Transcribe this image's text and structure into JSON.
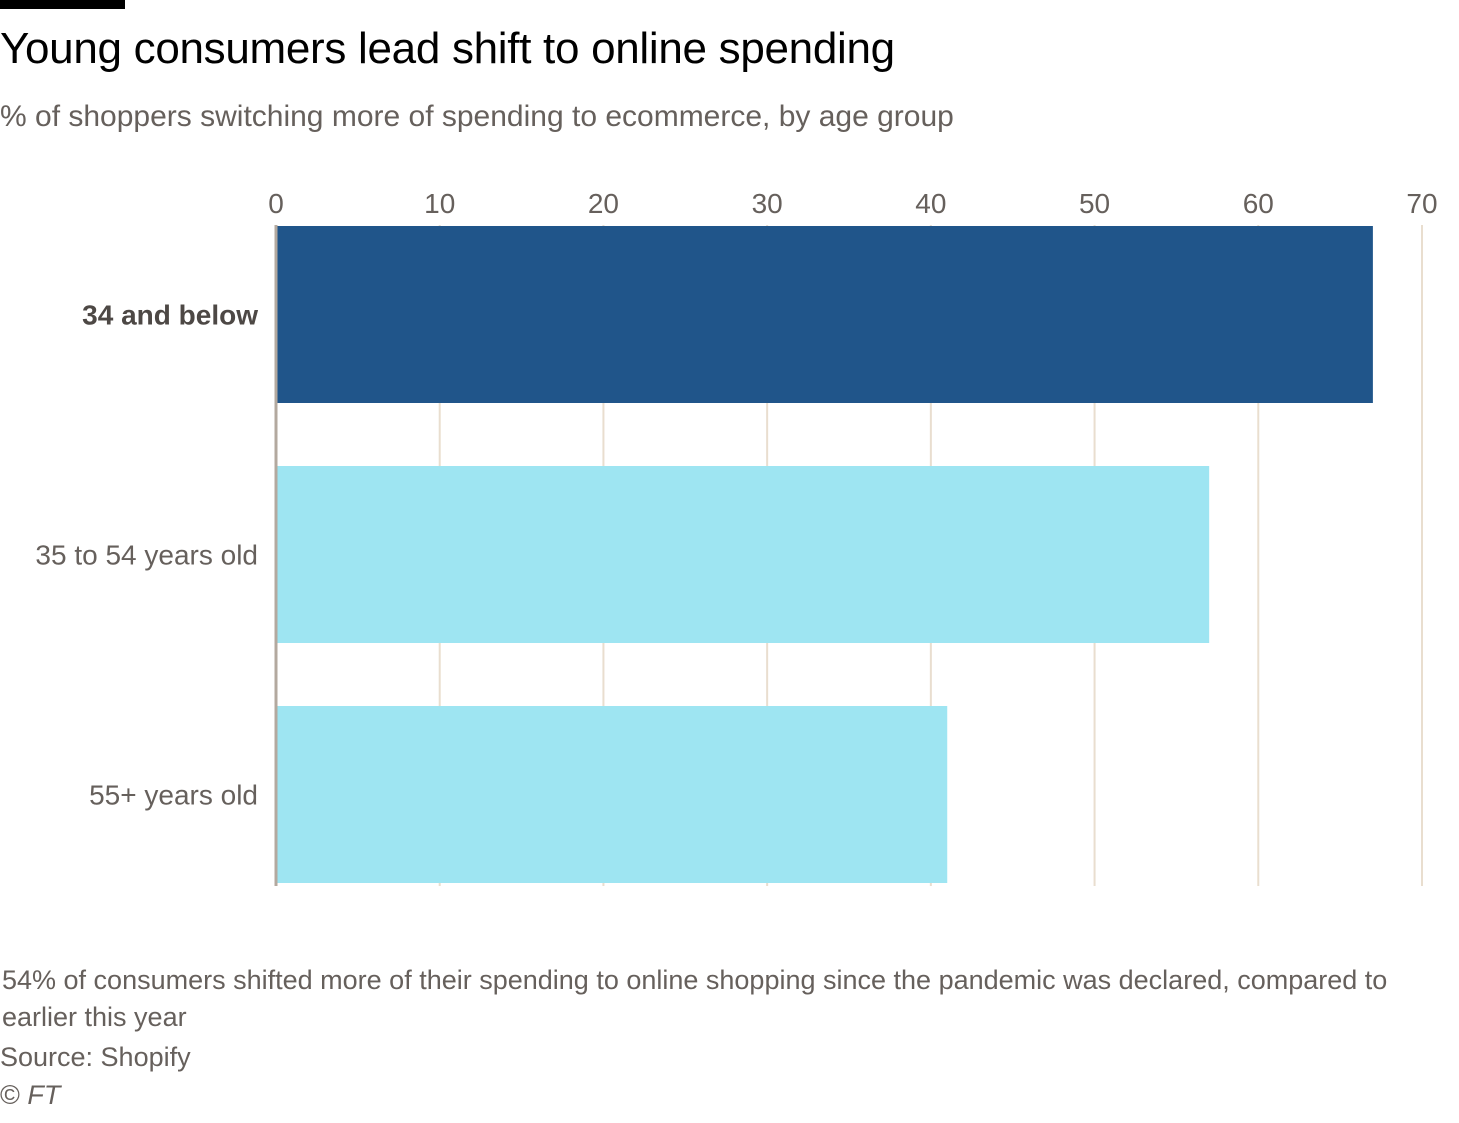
{
  "header": {
    "title": "Young consumers lead shift to online spending",
    "subtitle": "% of shoppers switching more of spending to ecommerce, by age group"
  },
  "footer": {
    "note": "54% of consumers shifted more of their spending to online shopping since the pandemic was declared, compared to earlier this year",
    "source": "Source: Shopify",
    "copyright_symbol": "©",
    "copyright_brand": "FT"
  },
  "colors": {
    "highlight_bar": "#20558a",
    "other_bar": "#9ee5f2",
    "gridline": "#e9decf",
    "axis": "#b3a99f",
    "tick_text": "#66605c",
    "category_text": "#66605c",
    "highlight_text": "#4d4845"
  },
  "chart_data": {
    "type": "bar",
    "orientation": "horizontal",
    "title": "Young consumers lead shift to online spending",
    "subtitle": "% of shoppers switching more of spending to ecommerce, by age group",
    "xlabel": "",
    "ylabel": "",
    "xlim": [
      0,
      70
    ],
    "ticks": [
      0,
      10,
      20,
      30,
      40,
      50,
      60,
      70
    ],
    "tick_position": "top",
    "grid": true,
    "categories": [
      "34 and below",
      "35 to 54 years old",
      "55+ years old"
    ],
    "values": [
      67,
      57,
      41
    ],
    "highlight": [
      true,
      false,
      false
    ]
  }
}
